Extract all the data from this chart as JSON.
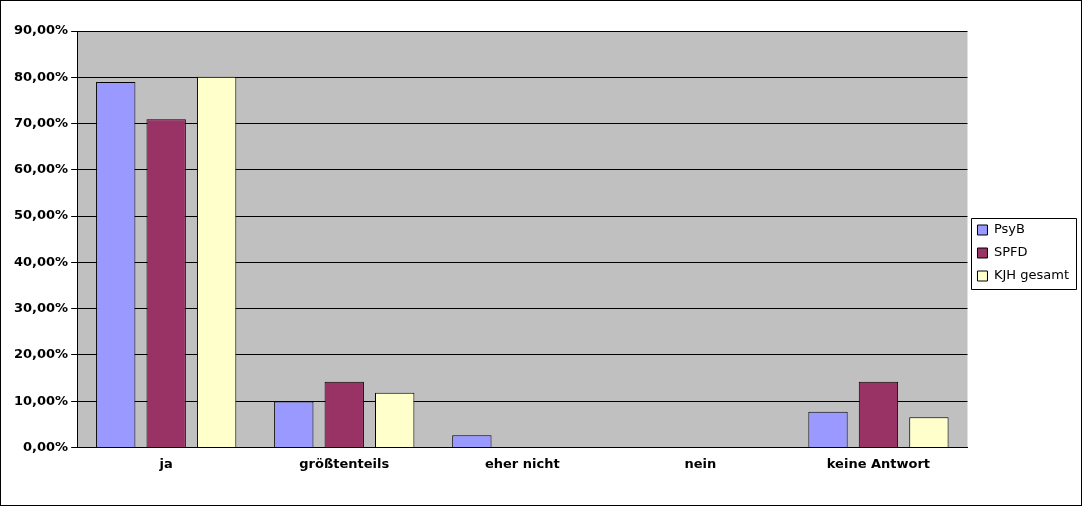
{
  "chart_data": {
    "type": "bar",
    "categories": [
      "ja",
      "größtenteils",
      "eher nicht",
      "nein",
      "keine Antwort"
    ],
    "series": [
      {
        "name": "PsyB",
        "color": "#9999ff",
        "values": [
          79,
          9.9,
          2.6,
          0,
          7.7
        ]
      },
      {
        "name": "SPFD",
        "color": "#993366",
        "values": [
          70.9,
          14.2,
          0,
          0,
          14.2
        ]
      },
      {
        "name": "KJH gesamt",
        "color": "#ffffcc",
        "values": [
          80.1,
          11.8,
          0,
          0,
          6.5
        ]
      }
    ],
    "ylim": [
      0,
      90
    ],
    "yticks": [
      {
        "value": 0,
        "label": "0,00%"
      },
      {
        "value": 10,
        "label": "10,00%"
      },
      {
        "value": 20,
        "label": "20,00%"
      },
      {
        "value": 30,
        "label": "30,00%"
      },
      {
        "value": 40,
        "label": "40,00%"
      },
      {
        "value": 50,
        "label": "50,00%"
      },
      {
        "value": 60,
        "label": "60,00%"
      },
      {
        "value": 70,
        "label": "70,00%"
      },
      {
        "value": 80,
        "label": "80,00%"
      },
      {
        "value": 90,
        "label": "90,00%"
      }
    ],
    "grid": "y",
    "legend": "right"
  }
}
